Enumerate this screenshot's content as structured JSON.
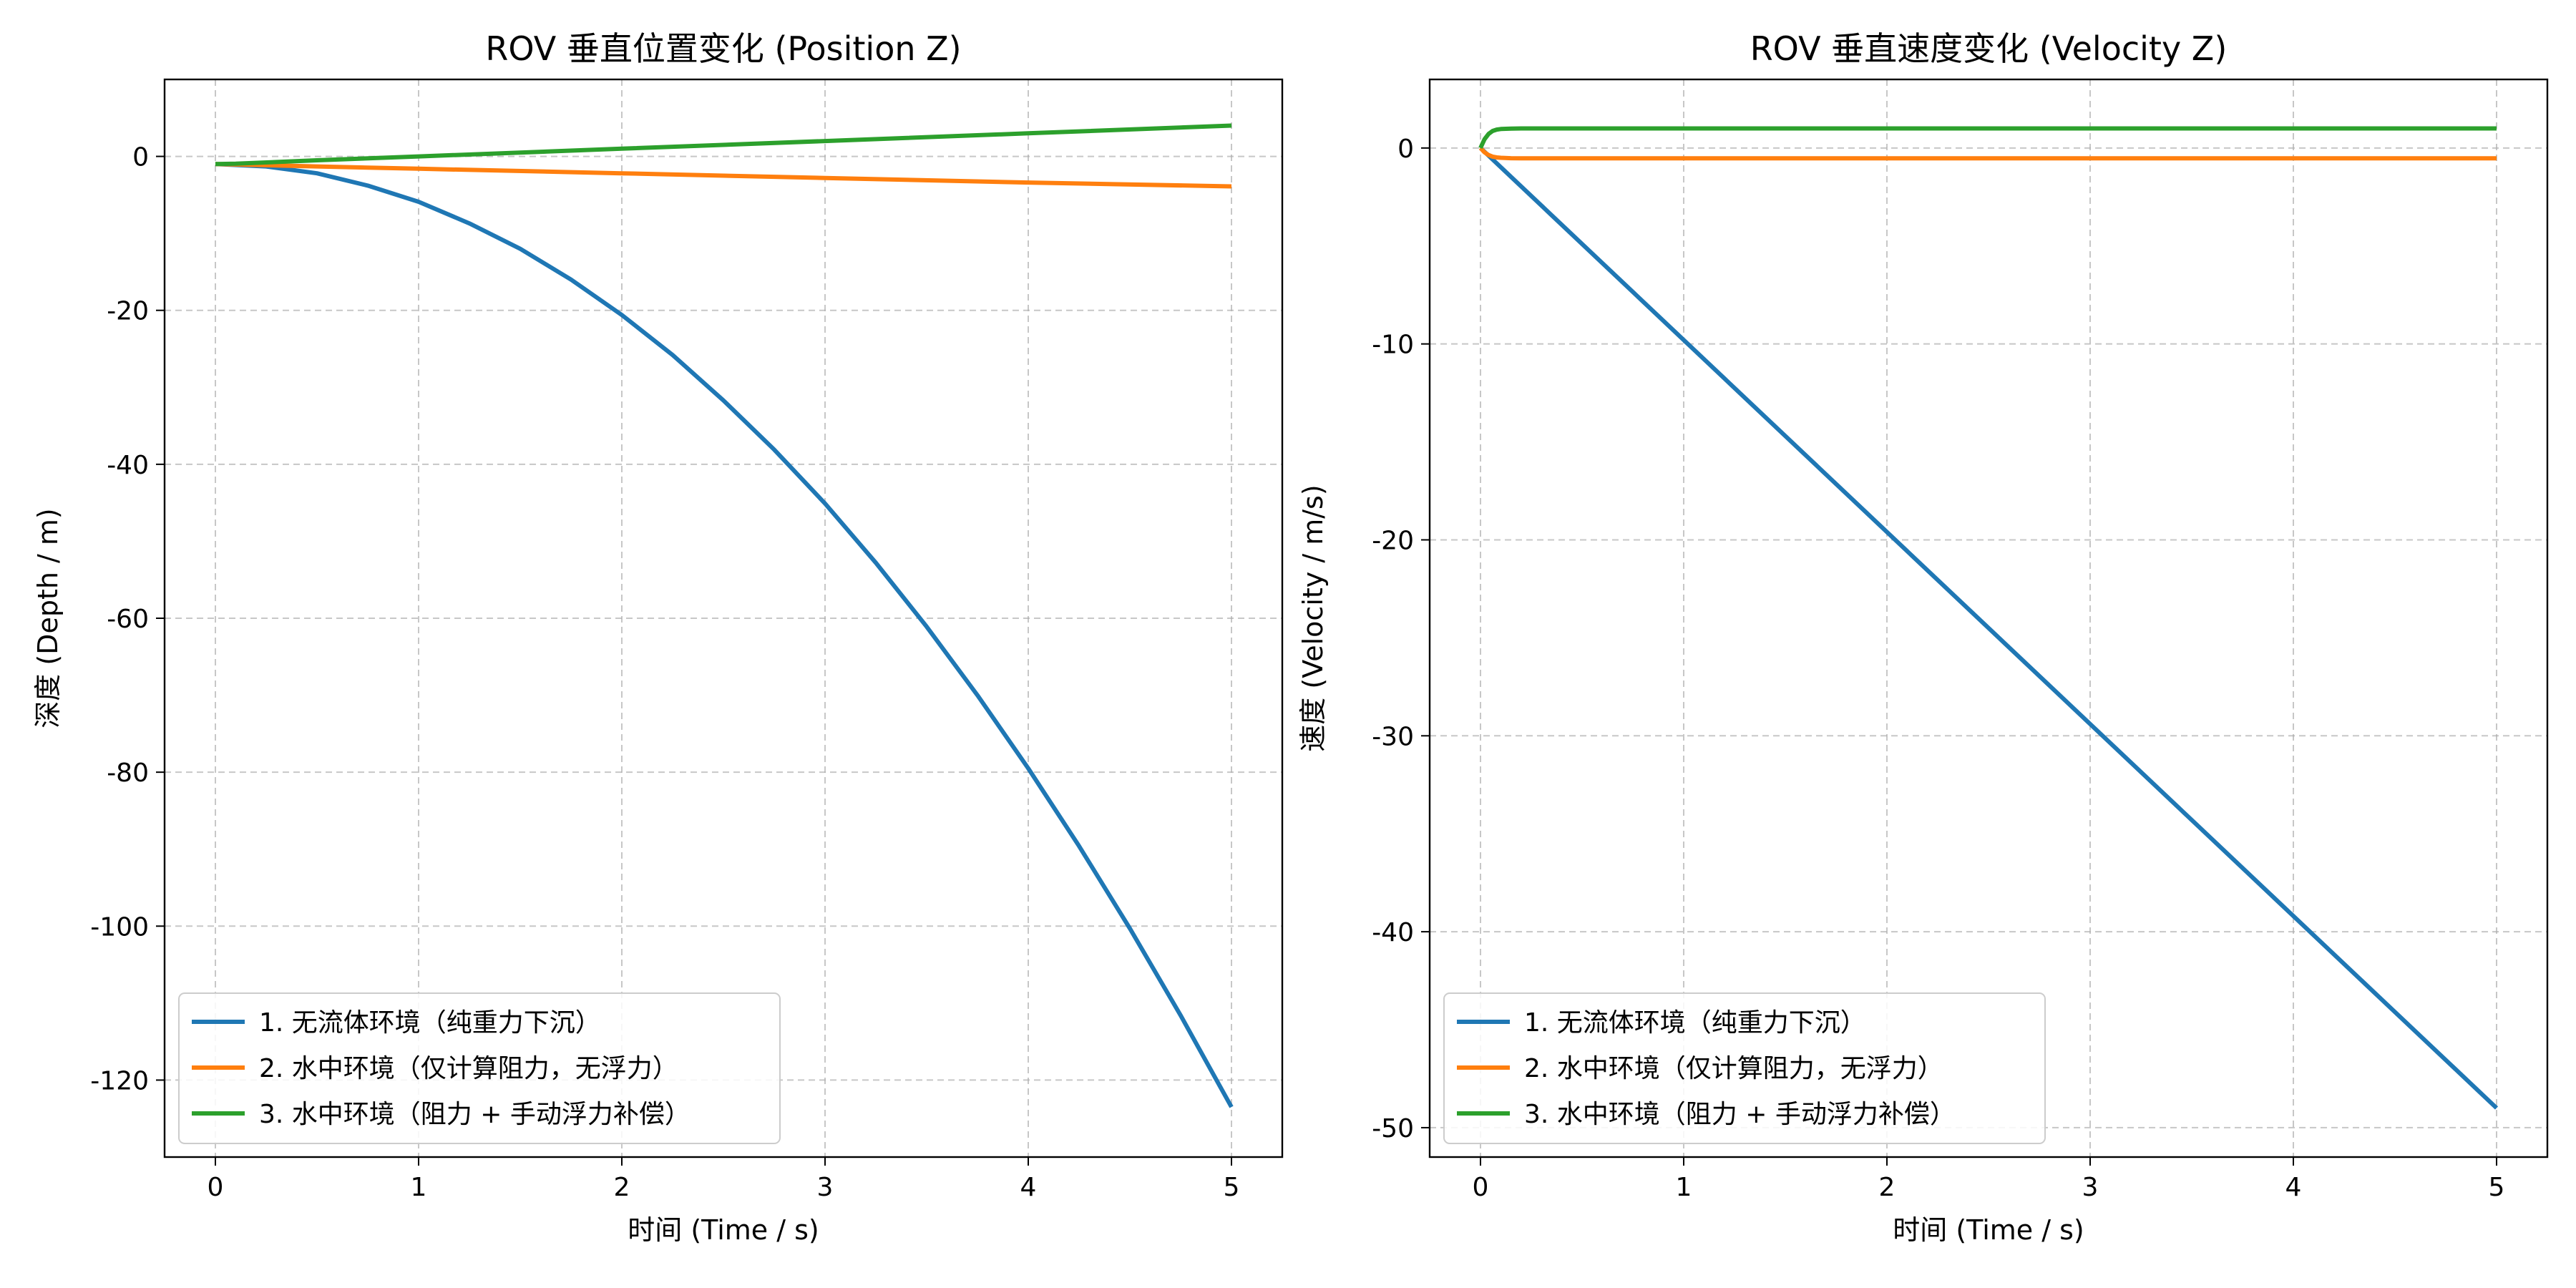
{
  "colors": {
    "series1": "#1f77b4",
    "series2": "#ff7f0e",
    "series3": "#2ca02c",
    "grid": "#b0b0b0"
  },
  "chart_data": [
    {
      "type": "line",
      "title": "ROV 垂直位置变化 (Position Z)",
      "xlabel": "时间 (Time / s)",
      "ylabel": "深度 (Depth / m)",
      "xlim": [
        -0.25,
        5.25
      ],
      "ylim": [
        -130,
        10
      ],
      "xticks": [
        0,
        1,
        2,
        3,
        4,
        5
      ],
      "yticks": [
        0,
        -20,
        -40,
        -60,
        -80,
        -100,
        -120
      ],
      "grid": true,
      "legend_position": "lower-left",
      "series": [
        {
          "name": "1. 无流体环境（纯重力下沉）",
          "x": [
            0,
            0.25,
            0.5,
            0.75,
            1,
            1.25,
            1.5,
            1.75,
            2,
            2.25,
            2.5,
            2.75,
            3,
            3.25,
            3.5,
            3.75,
            4,
            4.25,
            4.5,
            4.75,
            5
          ],
          "y": [
            -1,
            -1.3,
            -2.2,
            -3.8,
            -5.9,
            -8.7,
            -12,
            -16,
            -20.6,
            -25.8,
            -31.7,
            -38.1,
            -45.1,
            -52.8,
            -61.1,
            -70,
            -79.5,
            -89.6,
            -100.3,
            -111.6,
            -123.5
          ]
        },
        {
          "name": "2. 水中环境（仅计算阻力，无浮力）",
          "x": [
            0,
            0.1,
            0.5,
            1,
            2,
            3,
            4,
            5
          ],
          "y": [
            -1,
            -1.05,
            -1.3,
            -1.6,
            -2.2,
            -2.8,
            -3.4,
            -3.9
          ]
        },
        {
          "name": "3. 水中环境（阻力 + 手动浮力补偿）",
          "x": [
            0,
            0.1,
            0.5,
            1,
            2,
            3,
            4,
            5
          ],
          "y": [
            -1,
            -0.95,
            -0.5,
            0,
            1,
            2,
            3,
            4
          ]
        }
      ]
    },
    {
      "type": "line",
      "title": "ROV 垂直速度变化 (Velocity Z)",
      "xlabel": "时间 (Time / s)",
      "ylabel": "速度 (Velocity / m/s)",
      "xlim": [
        -0.25,
        5.25
      ],
      "ylim": [
        -51.5,
        3.5
      ],
      "xticks": [
        0,
        1,
        2,
        3,
        4,
        5
      ],
      "yticks": [
        0,
        -10,
        -20,
        -30,
        -40,
        -50
      ],
      "grid": true,
      "legend_position": "lower-left",
      "series": [
        {
          "name": "1. 无流体环境（纯重力下沉）",
          "x": [
            0,
            5
          ],
          "y": [
            0,
            -49
          ]
        },
        {
          "name": "2. 水中环境（仅计算阻力，无浮力）",
          "x": [
            0,
            0.02,
            0.04,
            0.06,
            0.08,
            0.1,
            0.15,
            0.2,
            5
          ],
          "y": [
            0,
            -0.22,
            -0.36,
            -0.44,
            -0.48,
            -0.5,
            -0.52,
            -0.53,
            -0.53
          ]
        },
        {
          "name": "3. 水中环境（阻力 + 手动浮力补偿）",
          "x": [
            0,
            0.02,
            0.04,
            0.06,
            0.08,
            0.1,
            0.15,
            0.2,
            5
          ],
          "y": [
            0,
            0.45,
            0.72,
            0.87,
            0.94,
            0.97,
            0.99,
            1,
            1
          ]
        }
      ]
    }
  ]
}
